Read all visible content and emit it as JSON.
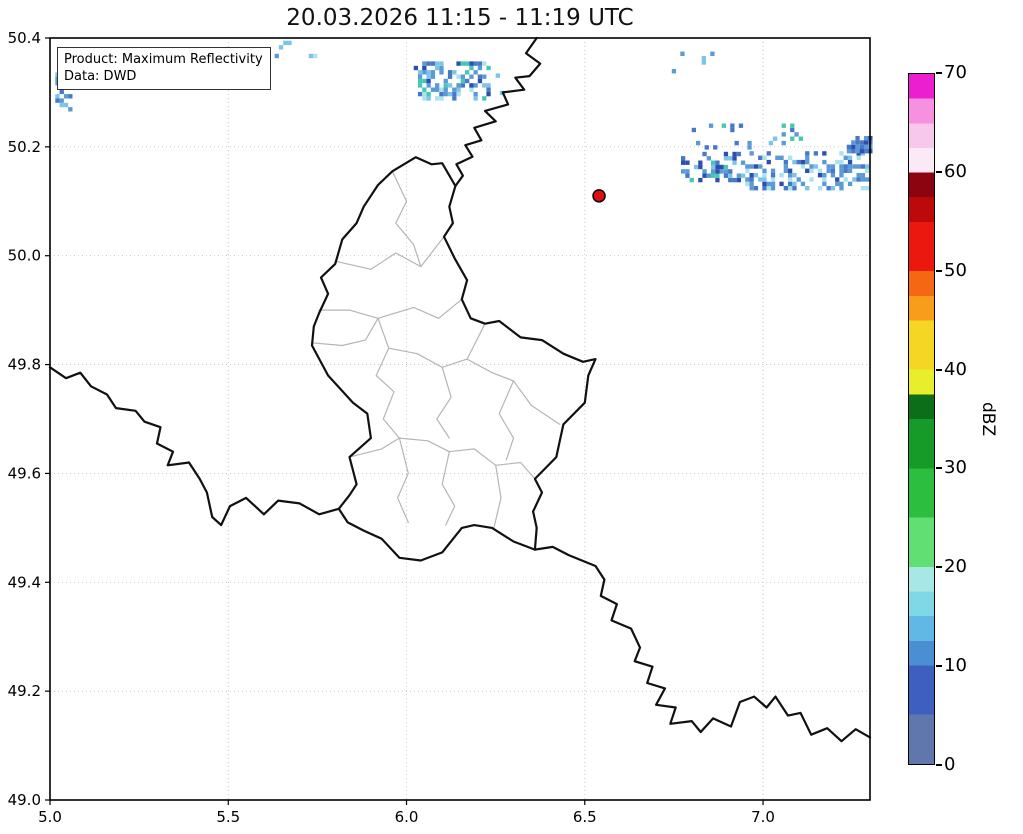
{
  "chart_data": {
    "type": "heatmap",
    "title": "20.03.2026 11:15 - 11:19 UTC",
    "xlabel": "",
    "ylabel": "",
    "xlim": [
      5.0,
      7.3
    ],
    "ylim": [
      49.0,
      50.4
    ],
    "xticks": [
      5.0,
      5.5,
      6.0,
      6.5,
      7.0
    ],
    "xtick_labels": [
      "5.0",
      "5.5",
      "6.0",
      "6.5",
      "7.0"
    ],
    "yticks": [
      49.0,
      49.2,
      49.4,
      49.6,
      49.8,
      50.0,
      50.2,
      50.4
    ],
    "ytick_labels": [
      "49.0",
      "49.2",
      "49.4",
      "49.6",
      "49.8",
      "50.0",
      "50.2",
      "50.4"
    ],
    "grid": "dotted",
    "colorbar": {
      "label": "dBZ",
      "min": 0,
      "max": 70,
      "ticks": [
        0,
        10,
        20,
        30,
        40,
        50,
        60,
        70
      ],
      "tick_labels": [
        "0",
        "10",
        "20",
        "30",
        "40",
        "50",
        "60",
        "70"
      ],
      "bands": [
        {
          "from": 0,
          "to": 5,
          "color": "#5f77ad"
        },
        {
          "from": 5,
          "to": 10,
          "color": "#3c5fc0"
        },
        {
          "from": 10,
          "to": 12.5,
          "color": "#4a8fd4"
        },
        {
          "from": 12.5,
          "to": 15,
          "color": "#62b8e4"
        },
        {
          "from": 15,
          "to": 17.5,
          "color": "#7fd8e6"
        },
        {
          "from": 17.5,
          "to": 20,
          "color": "#a8e8e4"
        },
        {
          "from": 20,
          "to": 25,
          "color": "#62df72"
        },
        {
          "from": 25,
          "to": 30,
          "color": "#2cbe3e"
        },
        {
          "from": 30,
          "to": 35,
          "color": "#169a28"
        },
        {
          "from": 35,
          "to": 37.5,
          "color": "#0c6e18"
        },
        {
          "from": 37.5,
          "to": 40,
          "color": "#e8ee2c"
        },
        {
          "from": 40,
          "to": 45,
          "color": "#f6d625"
        },
        {
          "from": 45,
          "to": 47.5,
          "color": "#f79c1b"
        },
        {
          "from": 47.5,
          "to": 50,
          "color": "#f56713"
        },
        {
          "from": 50,
          "to": 55,
          "color": "#ea180e"
        },
        {
          "from": 55,
          "to": 57.5,
          "color": "#bc0a0a"
        },
        {
          "from": 57.5,
          "to": 60,
          "color": "#8c0410"
        },
        {
          "from": 60,
          "to": 62.5,
          "color": "#fbeaf6"
        },
        {
          "from": 62.5,
          "to": 65,
          "color": "#f8c7ec"
        },
        {
          "from": 65,
          "to": 67.5,
          "color": "#f591e0"
        },
        {
          "from": 67.5,
          "to": 70,
          "color": "#ec1fd0"
        }
      ]
    },
    "marker": {
      "lon": 6.54,
      "lat": 50.11,
      "radius": 6,
      "fill": "#e01010",
      "edge": "#000000"
    }
  },
  "info_box": {
    "product": "Product: Maximum Reflectivity",
    "source": "Data: DWD"
  },
  "map": {
    "border_color": "#111111",
    "border_width": 2.2,
    "admin_color": "#b5b5b5",
    "admin_width": 1.2,
    "grid_color": "#c3c3c3",
    "country_borders": [
      [
        [
          6.365,
          50.4
        ],
        [
          6.335,
          50.372
        ],
        [
          6.375,
          50.353
        ],
        [
          6.345,
          50.33
        ],
        [
          6.305,
          50.327
        ],
        [
          6.33,
          50.305
        ],
        [
          6.27,
          50.3
        ],
        [
          6.285,
          50.278
        ],
        [
          6.22,
          50.266
        ],
        [
          6.25,
          50.247
        ],
        [
          6.19,
          50.235
        ],
        [
          6.21,
          50.212
        ],
        [
          6.165,
          50.203
        ],
        [
          6.185,
          50.182
        ],
        [
          6.14,
          50.168
        ],
        [
          6.158,
          50.147
        ],
        [
          6.137,
          50.128
        ]
      ],
      [
        [
          5.0,
          49.795
        ],
        [
          5.045,
          49.775
        ],
        [
          5.085,
          49.785
        ],
        [
          5.115,
          49.76
        ],
        [
          5.16,
          49.745
        ],
        [
          5.185,
          49.72
        ],
        [
          5.24,
          49.715
        ],
        [
          5.265,
          49.695
        ],
        [
          5.31,
          49.685
        ],
        [
          5.3,
          49.655
        ],
        [
          5.345,
          49.64
        ],
        [
          5.33,
          49.615
        ],
        [
          5.39,
          49.62
        ],
        [
          5.42,
          49.59
        ],
        [
          5.44,
          49.565
        ],
        [
          5.455,
          49.52
        ],
        [
          5.48,
          49.505
        ],
        [
          5.505,
          49.54
        ],
        [
          5.55,
          49.555
        ],
        [
          5.6,
          49.525
        ],
        [
          5.64,
          49.55
        ],
        [
          5.7,
          49.545
        ],
        [
          5.755,
          49.525
        ],
        [
          5.81,
          49.535
        ]
      ],
      [
        [
          6.36,
          49.46
        ],
        [
          6.41,
          49.465
        ],
        [
          6.455,
          49.45
        ],
        [
          6.53,
          49.43
        ],
        [
          6.555,
          49.405
        ],
        [
          6.545,
          49.375
        ],
        [
          6.59,
          49.36
        ],
        [
          6.575,
          49.33
        ],
        [
          6.63,
          49.315
        ],
        [
          6.655,
          49.28
        ],
        [
          6.64,
          49.255
        ],
        [
          6.69,
          49.245
        ],
        [
          6.675,
          49.215
        ],
        [
          6.725,
          49.205
        ],
        [
          6.7,
          49.175
        ],
        [
          6.755,
          49.17
        ],
        [
          6.74,
          49.14
        ],
        [
          6.8,
          49.145
        ],
        [
          6.825,
          49.125
        ],
        [
          6.86,
          49.15
        ],
        [
          6.91,
          49.135
        ],
        [
          6.935,
          49.18
        ],
        [
          6.975,
          49.19
        ],
        [
          7.01,
          49.17
        ],
        [
          7.035,
          49.19
        ],
        [
          7.07,
          49.155
        ],
        [
          7.105,
          49.16
        ],
        [
          7.135,
          49.12
        ],
        [
          7.18,
          49.132
        ],
        [
          7.22,
          49.108
        ],
        [
          7.26,
          49.13
        ],
        [
          7.3,
          49.115
        ]
      ]
    ],
    "luxembourg_outline": [
      [
        6.026,
        50.181
      ],
      [
        6.07,
        50.168
      ],
      [
        6.1,
        50.17
      ],
      [
        6.137,
        50.128
      ],
      [
        6.12,
        50.09
      ],
      [
        6.13,
        50.06
      ],
      [
        6.105,
        50.035
      ],
      [
        6.135,
        49.995
      ],
      [
        6.17,
        49.955
      ],
      [
        6.155,
        49.92
      ],
      [
        6.18,
        49.885
      ],
      [
        6.22,
        49.875
      ],
      [
        6.26,
        49.88
      ],
      [
        6.32,
        49.85
      ],
      [
        6.38,
        49.845
      ],
      [
        6.44,
        49.82
      ],
      [
        6.495,
        49.805
      ],
      [
        6.53,
        49.81
      ],
      [
        6.51,
        49.78
      ],
      [
        6.5,
        49.73
      ],
      [
        6.44,
        49.69
      ],
      [
        6.43,
        49.66
      ],
      [
        6.42,
        49.63
      ],
      [
        6.36,
        49.59
      ],
      [
        6.38,
        49.565
      ],
      [
        6.355,
        49.53
      ],
      [
        6.365,
        49.5
      ],
      [
        6.36,
        49.46
      ],
      [
        6.3,
        49.475
      ],
      [
        6.24,
        49.5
      ],
      [
        6.19,
        49.505
      ],
      [
        6.155,
        49.5
      ],
      [
        6.1,
        49.455
      ],
      [
        6.04,
        49.44
      ],
      [
        5.98,
        49.445
      ],
      [
        5.93,
        49.48
      ],
      [
        5.88,
        49.495
      ],
      [
        5.835,
        49.51
      ],
      [
        5.81,
        49.535
      ],
      [
        5.84,
        49.56
      ],
      [
        5.86,
        49.58
      ],
      [
        5.84,
        49.63
      ],
      [
        5.9,
        49.665
      ],
      [
        5.89,
        49.71
      ],
      [
        5.85,
        49.73
      ],
      [
        5.78,
        49.78
      ],
      [
        5.735,
        49.835
      ],
      [
        5.74,
        49.87
      ],
      [
        5.755,
        49.895
      ],
      [
        5.78,
        49.93
      ],
      [
        5.76,
        49.96
      ],
      [
        5.8,
        49.985
      ],
      [
        5.82,
        50.03
      ],
      [
        5.86,
        50.06
      ],
      [
        5.88,
        50.09
      ],
      [
        5.92,
        50.13
      ],
      [
        5.96,
        50.155
      ],
      [
        6.026,
        50.181
      ]
    ],
    "canton_lines": [
      [
        [
          5.8,
          49.99
        ],
        [
          5.9,
          49.975
        ],
        [
          5.97,
          50.005
        ],
        [
          6.04,
          49.98
        ],
        [
          6.105,
          50.035
        ]
      ],
      [
        [
          5.96,
          50.155
        ],
        [
          6.0,
          50.1
        ],
        [
          5.97,
          50.06
        ],
        [
          6.02,
          50.02
        ],
        [
          6.04,
          49.98
        ]
      ],
      [
        [
          5.755,
          49.9
        ],
        [
          5.84,
          49.9
        ],
        [
          5.92,
          49.885
        ],
        [
          6.02,
          49.905
        ],
        [
          6.09,
          49.885
        ],
        [
          6.155,
          49.92
        ]
      ],
      [
        [
          5.735,
          49.84
        ],
        [
          5.82,
          49.835
        ],
        [
          5.885,
          49.845
        ],
        [
          5.92,
          49.885
        ]
      ],
      [
        [
          5.92,
          49.885
        ],
        [
          5.95,
          49.83
        ],
        [
          5.915,
          49.78
        ],
        [
          5.965,
          49.75
        ],
        [
          5.935,
          49.7
        ],
        [
          5.98,
          49.665
        ]
      ],
      [
        [
          5.84,
          49.63
        ],
        [
          5.93,
          49.645
        ],
        [
          5.98,
          49.665
        ],
        [
          6.06,
          49.66
        ],
        [
          6.12,
          49.64
        ],
        [
          6.19,
          49.645
        ],
        [
          6.25,
          49.615
        ],
        [
          6.32,
          49.62
        ],
        [
          6.36,
          49.59
        ]
      ],
      [
        [
          5.98,
          49.665
        ],
        [
          6.005,
          49.6
        ],
        [
          5.975,
          49.555
        ],
        [
          6.005,
          49.51
        ]
      ],
      [
        [
          6.12,
          49.64
        ],
        [
          6.1,
          49.58
        ],
        [
          6.135,
          49.54
        ],
        [
          6.11,
          49.505
        ]
      ],
      [
        [
          6.25,
          49.615
        ],
        [
          6.265,
          49.555
        ],
        [
          6.245,
          49.5
        ]
      ],
      [
        [
          5.95,
          49.83
        ],
        [
          6.03,
          49.82
        ],
        [
          6.1,
          49.795
        ],
        [
          6.17,
          49.81
        ],
        [
          6.22,
          49.875
        ]
      ],
      [
        [
          6.1,
          49.795
        ],
        [
          6.125,
          49.74
        ],
        [
          6.085,
          49.7
        ],
        [
          6.12,
          49.665
        ]
      ],
      [
        [
          6.17,
          49.81
        ],
        [
          6.24,
          49.785
        ],
        [
          6.3,
          49.77
        ],
        [
          6.35,
          49.725
        ],
        [
          6.43,
          49.69
        ]
      ],
      [
        [
          6.3,
          49.77
        ],
        [
          6.26,
          49.71
        ],
        [
          6.3,
          49.665
        ],
        [
          6.28,
          49.625
        ]
      ]
    ],
    "echo_palette": [
      "#2c4fae",
      "#4878c8",
      "#5b9bd5",
      "#7cc4e8",
      "#a8e3ee",
      "#46c8b4"
    ],
    "echo_clusters": [
      {
        "lon": 5.015,
        "lat": 50.265,
        "w": 0.045,
        "h": 0.075,
        "density": 0.5,
        "seed": 11,
        "colors": [
          1,
          2,
          3
        ]
      },
      {
        "lon": 5.63,
        "lat": 50.355,
        "w": 0.14,
        "h": 0.04,
        "density": 0.1,
        "seed": 22,
        "colors": [
          2,
          3,
          4
        ]
      },
      {
        "lon": 6.02,
        "lat": 50.285,
        "w": 0.21,
        "h": 0.07,
        "density": 0.55,
        "seed": 33,
        "colors": [
          0,
          1,
          2,
          2,
          3,
          4,
          5
        ]
      },
      {
        "lon": 6.25,
        "lat": 50.295,
        "w": 0.06,
        "h": 0.04,
        "density": 0.18,
        "seed": 44,
        "colors": [
          2,
          3
        ]
      },
      {
        "lon": 6.4,
        "lat": 50.37,
        "w": 0.08,
        "h": 0.03,
        "density": 0.07,
        "seed": 51,
        "colors": [
          3,
          4
        ]
      },
      {
        "lon": 6.72,
        "lat": 50.335,
        "w": 0.14,
        "h": 0.05,
        "density": 0.08,
        "seed": 55,
        "colors": [
          2,
          3,
          4
        ]
      },
      {
        "lon": 6.8,
        "lat": 50.195,
        "w": 0.31,
        "h": 0.05,
        "density": 0.1,
        "seed": 66,
        "colors": [
          1,
          2,
          3,
          5
        ]
      },
      {
        "lon": 6.77,
        "lat": 50.135,
        "w": 0.18,
        "h": 0.055,
        "density": 0.4,
        "seed": 77,
        "colors": [
          0,
          1,
          2,
          3,
          5
        ]
      },
      {
        "lon": 6.95,
        "lat": 50.12,
        "w": 0.35,
        "h": 0.075,
        "density": 0.42,
        "seed": 88,
        "colors": [
          0,
          1,
          2,
          2,
          3,
          4
        ]
      },
      {
        "lon": 7.235,
        "lat": 50.188,
        "w": 0.075,
        "h": 0.032,
        "density": 0.75,
        "seed": 99,
        "colors": [
          0,
          1,
          1,
          2
        ]
      }
    ]
  }
}
